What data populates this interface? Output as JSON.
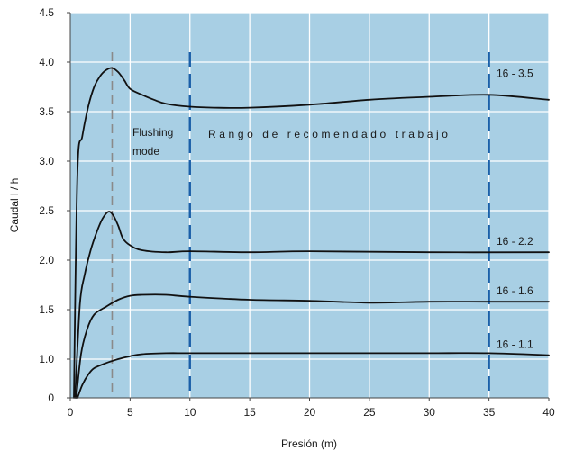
{
  "chart_data": {
    "type": "line",
    "xlabel": "Presión (m)",
    "ylabel": "Caudal  l / h",
    "xlim": [
      0,
      40
    ],
    "x_ticks": [
      "0",
      "5",
      "10",
      "15",
      "20",
      "25",
      "30",
      "35",
      "40"
    ],
    "y_ticks": [
      {
        "label": "0",
        "value": 0.7
      },
      {
        "label": "1.0",
        "value": 1.0
      },
      {
        "label": "1.5",
        "value": 1.5
      },
      {
        "label": "2.0",
        "value": 2.0
      },
      {
        "label": "2.5",
        "value": 2.5
      },
      {
        "label": "3.0",
        "value": 3.0
      },
      {
        "label": "3.5",
        "value": 3.5
      },
      {
        "label": "4.0",
        "value": 4.0
      },
      {
        "label": "4.5",
        "value": 4.5
      }
    ],
    "ylim": [
      0.7,
      4.5
    ],
    "grid": true,
    "colors": {
      "plot_background": "#a8cfe4",
      "grid": "#ffffff",
      "series_line": "#111111",
      "working_range_line": "#1a5fa8",
      "flushing_line": "#8a8a8a"
    },
    "annotations": {
      "flushing_label_line1": "Flushing",
      "flushing_label_line2": "mode",
      "working_range_label": "Rango de recomendado trabajo",
      "flushing_x": 3.5,
      "working_range_start_x": 10,
      "working_range_end_x": 35
    },
    "series": [
      {
        "name": "16 - 3.5",
        "points": [
          [
            0.3,
            0.7
          ],
          [
            0.6,
            2.9
          ],
          [
            1,
            3.25
          ],
          [
            1.5,
            3.55
          ],
          [
            2,
            3.75
          ],
          [
            2.5,
            3.86
          ],
          [
            3,
            3.92
          ],
          [
            3.5,
            3.94
          ],
          [
            4,
            3.9
          ],
          [
            4.5,
            3.82
          ],
          [
            5,
            3.73
          ],
          [
            6,
            3.67
          ],
          [
            7,
            3.62
          ],
          [
            8,
            3.58
          ],
          [
            10,
            3.55
          ],
          [
            12,
            3.54
          ],
          [
            15,
            3.54
          ],
          [
            20,
            3.57
          ],
          [
            25,
            3.62
          ],
          [
            30,
            3.65
          ],
          [
            35,
            3.67
          ],
          [
            40,
            3.62
          ]
        ]
      },
      {
        "name": "16 - 2.2",
        "points": [
          [
            0.4,
            0.7
          ],
          [
            0.8,
            1.55
          ],
          [
            1.2,
            1.85
          ],
          [
            1.7,
            2.1
          ],
          [
            2.2,
            2.28
          ],
          [
            2.7,
            2.42
          ],
          [
            3.2,
            2.49
          ],
          [
            3.6,
            2.45
          ],
          [
            4,
            2.35
          ],
          [
            4.4,
            2.22
          ],
          [
            5,
            2.15
          ],
          [
            6,
            2.1
          ],
          [
            8,
            2.08
          ],
          [
            10,
            2.09
          ],
          [
            15,
            2.08
          ],
          [
            20,
            2.09
          ],
          [
            30,
            2.08
          ],
          [
            40,
            2.08
          ]
        ]
      },
      {
        "name": "16 - 1.6",
        "points": [
          [
            0.5,
            0.7
          ],
          [
            0.9,
            1.05
          ],
          [
            1.4,
            1.3
          ],
          [
            2,
            1.45
          ],
          [
            3,
            1.53
          ],
          [
            4,
            1.6
          ],
          [
            5,
            1.64
          ],
          [
            6,
            1.65
          ],
          [
            8,
            1.65
          ],
          [
            10,
            1.63
          ],
          [
            15,
            1.6
          ],
          [
            20,
            1.59
          ],
          [
            25,
            1.57
          ],
          [
            30,
            1.58
          ],
          [
            35,
            1.58
          ],
          [
            40,
            1.58
          ]
        ]
      },
      {
        "name": "16 - 1.1",
        "points": [
          [
            0.6,
            0.7
          ],
          [
            1,
            0.8
          ],
          [
            1.5,
            0.88
          ],
          [
            2,
            0.93
          ],
          [
            3,
            0.97
          ],
          [
            4,
            1.0
          ],
          [
            5,
            1.03
          ],
          [
            6,
            1.05
          ],
          [
            8,
            1.06
          ],
          [
            10,
            1.06
          ],
          [
            15,
            1.06
          ],
          [
            20,
            1.06
          ],
          [
            25,
            1.06
          ],
          [
            30,
            1.06
          ],
          [
            35,
            1.06
          ],
          [
            40,
            1.04
          ]
        ]
      }
    ]
  }
}
